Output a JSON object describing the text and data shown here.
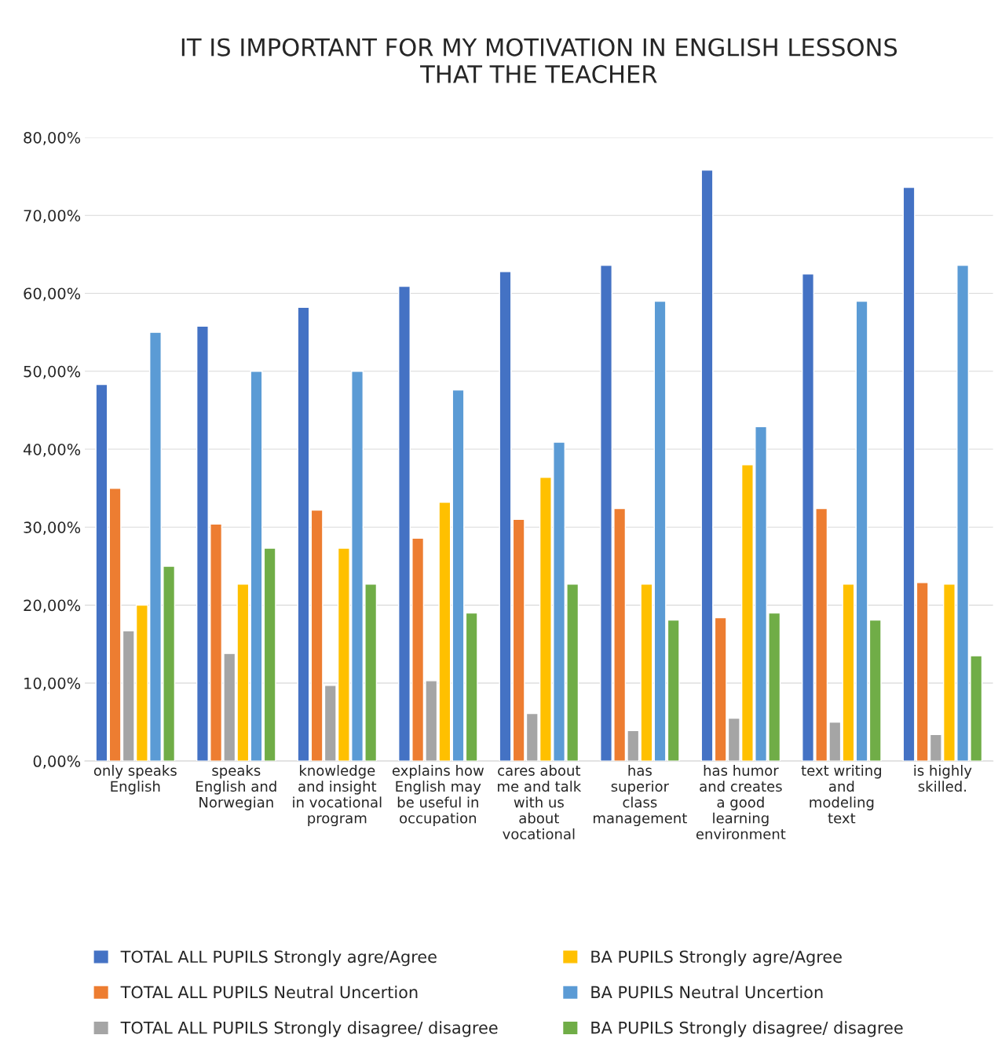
{
  "chart_data": {
    "type": "bar",
    "title": "IT IS IMPORTANT FOR MY MOTIVATION IN ENGLISH LESSONS\nTHAT THE TEACHER",
    "categories": [
      "only speaks\nEnglish",
      "speaks\nEnglish and\nNorwegian",
      "knowledge\nand insight\nin vocational\nprogram",
      "explains how\nEnglish may\nbe useful in\noccupation",
      "cares about\nme and talk\nwith us\nabout\nvocational",
      "has\nsuperior\nclass\nmanagement",
      "has humor\nand creates\na good\nlearning\nenvironment",
      "text writing\nand\nmodeling\ntext",
      "is highly\nskilled."
    ],
    "series": [
      {
        "name": "TOTAL ALL PUPILS Strongly agre/Agree",
        "color": "#4472c4",
        "values": [
          48.3,
          55.8,
          58.2,
          60.9,
          62.8,
          63.6,
          75.8,
          62.5,
          73.6
        ]
      },
      {
        "name": "TOTAL ALL PUPILS Neutral Uncertion",
        "color": "#ed7d31",
        "values": [
          35.0,
          30.4,
          32.2,
          28.6,
          31.0,
          32.4,
          18.4,
          32.4,
          22.9
        ]
      },
      {
        "name": "TOTAL ALL PUPILS Strongly disagree/ disagree",
        "color": "#a5a5a5",
        "values": [
          16.7,
          13.8,
          9.7,
          10.3,
          6.1,
          3.9,
          5.5,
          5.0,
          3.4
        ]
      },
      {
        "name": "BA PUPILS Strongly agre/Agree",
        "color": "#ffc000",
        "values": [
          20.0,
          22.7,
          27.3,
          33.2,
          36.4,
          22.7,
          38.0,
          22.7,
          22.7
        ]
      },
      {
        "name": "BA PUPILS Neutral Uncertion",
        "color": "#5b9bd5",
        "values": [
          55.0,
          50.0,
          50.0,
          47.6,
          40.9,
          59.0,
          42.9,
          59.0,
          63.6
        ]
      },
      {
        "name": "BA PUPILS Strongly disagree/ disagree",
        "color": "#70ad47",
        "values": [
          25.0,
          27.3,
          22.7,
          19.0,
          22.7,
          18.1,
          19.0,
          18.1,
          13.5
        ]
      }
    ],
    "ylim": [
      0,
      80
    ],
    "yticks": [
      {
        "value": 0,
        "label": "0,00%"
      },
      {
        "value": 10,
        "label": "10,00%"
      },
      {
        "value": 20,
        "label": "20,00%"
      },
      {
        "value": 30,
        "label": "30,00%"
      },
      {
        "value": 40,
        "label": "40,00%"
      },
      {
        "value": 50,
        "label": "50,00%"
      },
      {
        "value": 60,
        "label": "60,00%"
      },
      {
        "value": 70,
        "label": "70,00%"
      },
      {
        "value": 80,
        "label": "80,00%"
      }
    ],
    "grid": "y",
    "legend": "bottom"
  }
}
